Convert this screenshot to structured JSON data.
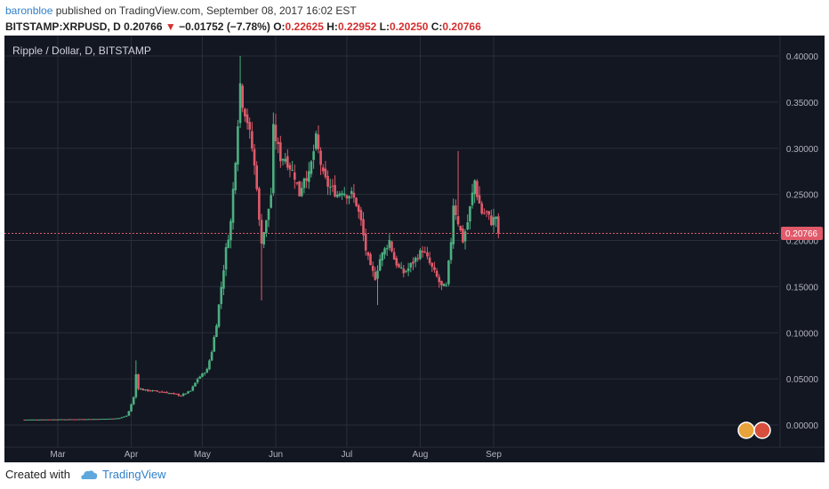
{
  "header": {
    "author": "baronbloe",
    "published": "published on TradingView.com, September 08, 2017 16:02 EST"
  },
  "quote": {
    "symbol": "BITSTAMP:XRPUSD, D",
    "last": "0.20766",
    "arrow": "▼",
    "change": "−0.01752 (−7.78%)",
    "o_label": "O:",
    "o": "0.22625",
    "h_label": "H:",
    "h": "0.22952",
    "l_label": "L:",
    "l": "0.20250",
    "c_label": "C:",
    "c": "0.20766"
  },
  "footer": {
    "created_with": "Created with",
    "brand": "TradingView"
  },
  "colors": {
    "background": "#131722",
    "up": "#4caf80",
    "down": "#e05a6a",
    "price_line": "#e05a6a",
    "grid": "#2a2e39",
    "axis_text": "#b2b5be"
  },
  "chart_data": {
    "type": "candlestick",
    "title": "Ripple / Dollar, D, BITSTAMP",
    "last_price_label": "0.20766",
    "y_ticks": [
      "0.40000",
      "0.35000",
      "0.30000",
      "0.25000",
      "0.20000",
      "0.15000",
      "0.10000",
      "0.05000",
      "0.00000"
    ],
    "ylim": [
      -0.01,
      0.41
    ],
    "x_ticks": [
      "Mar",
      "Apr",
      "May",
      "Jun",
      "Jul",
      "Aug",
      "Sep"
    ],
    "grid": true,
    "x_unit": "days from Feb 15, 2017",
    "x_tick_days": [
      14,
      45,
      75,
      106,
      136,
      167,
      198
    ],
    "series": [
      {
        "name": "XRPUSD",
        "keypoints": [
          [
            0,
            0.0058
          ],
          [
            10,
            0.006
          ],
          [
            20,
            0.0062
          ],
          [
            30,
            0.0065
          ],
          [
            36,
            0.0068
          ],
          [
            40,
            0.0075
          ],
          [
            43,
            0.01
          ],
          [
            44,
            0.015
          ],
          [
            46,
            0.03
          ],
          [
            47,
            0.055
          ],
          [
            48,
            0.04
          ],
          [
            50,
            0.038
          ],
          [
            54,
            0.037
          ],
          [
            58,
            0.036
          ],
          [
            62,
            0.034
          ],
          [
            66,
            0.032
          ],
          [
            70,
            0.037
          ],
          [
            73,
            0.05
          ],
          [
            75,
            0.055
          ],
          [
            77,
            0.06
          ],
          [
            79,
            0.08
          ],
          [
            81,
            0.11
          ],
          [
            83,
            0.15
          ],
          [
            85,
            0.19
          ],
          [
            87,
            0.22
          ],
          [
            89,
            0.29
          ],
          [
            91,
            0.37
          ],
          [
            92,
            0.35
          ],
          [
            94,
            0.33
          ],
          [
            96,
            0.3
          ],
          [
            98,
            0.26
          ],
          [
            99,
            0.22
          ],
          [
            100,
            0.2
          ],
          [
            102,
            0.22
          ],
          [
            104,
            0.25
          ],
          [
            105,
            0.32
          ],
          [
            106,
            0.31
          ],
          [
            108,
            0.29
          ],
          [
            110,
            0.29
          ],
          [
            112,
            0.28
          ],
          [
            114,
            0.27
          ],
          [
            116,
            0.25
          ],
          [
            118,
            0.27
          ],
          [
            120,
            0.27
          ],
          [
            123,
            0.31
          ],
          [
            126,
            0.27
          ],
          [
            128,
            0.26
          ],
          [
            132,
            0.25
          ],
          [
            134,
            0.255
          ],
          [
            136,
            0.25
          ],
          [
            138,
            0.25
          ],
          [
            140,
            0.24
          ],
          [
            142,
            0.22
          ],
          [
            144,
            0.19
          ],
          [
            146,
            0.17
          ],
          [
            148,
            0.16
          ],
          [
            150,
            0.18
          ],
          [
            152,
            0.19
          ],
          [
            154,
            0.2
          ],
          [
            156,
            0.18
          ],
          [
            158,
            0.17
          ],
          [
            160,
            0.165
          ],
          [
            162,
            0.17
          ],
          [
            165,
            0.18
          ],
          [
            168,
            0.19
          ],
          [
            170,
            0.18
          ],
          [
            172,
            0.17
          ],
          [
            174,
            0.16
          ],
          [
            176,
            0.15
          ],
          [
            178,
            0.15
          ],
          [
            180,
            0.2
          ],
          [
            181,
            0.24
          ],
          [
            183,
            0.22
          ],
          [
            185,
            0.2
          ],
          [
            187,
            0.22
          ],
          [
            189,
            0.25
          ],
          [
            190,
            0.265
          ],
          [
            191,
            0.25
          ],
          [
            193,
            0.23
          ],
          [
            195,
            0.23
          ],
          [
            197,
            0.22
          ],
          [
            199,
            0.2263
          ],
          [
            200,
            0.2077
          ]
        ]
      }
    ],
    "last_candle": {
      "open": 0.22625,
      "high": 0.22952,
      "low": 0.2025,
      "close": 0.20766
    }
  }
}
